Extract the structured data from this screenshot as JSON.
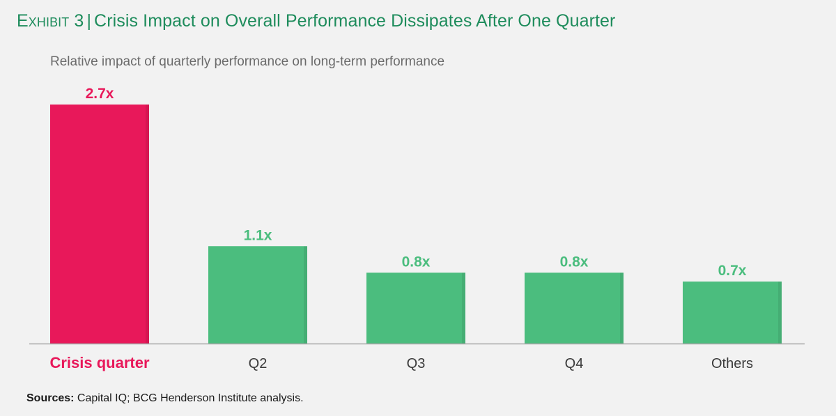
{
  "header": {
    "exhibit_label": "Exhibit 3",
    "title": "Crisis Impact on Overall Performance Dissipates After One Quarter"
  },
  "sources": {
    "label": "Sources:",
    "text": "Capital IQ; BCG Henderson Institute analysis."
  },
  "colors": {
    "highlight": "#e8185a",
    "bar": "#4bbd7e",
    "value_label_highlight": "#e8185a",
    "value_label": "#4bbd7e",
    "title": "#1e8c5c",
    "axis": "#a8a8a8"
  },
  "chart_data": {
    "type": "bar",
    "title": "Crisis Impact on Overall Performance Dissipates After One Quarter",
    "subtitle": "Relative impact of quarterly performance on long-term performance",
    "xlabel": "",
    "ylabel": "",
    "categories": [
      "Crisis quarter",
      "Q2",
      "Q3",
      "Q4",
      "Others"
    ],
    "values": [
      2.7,
      1.1,
      0.8,
      0.8,
      0.7
    ],
    "value_labels": [
      "2.7x",
      "1.1x",
      "0.8x",
      "0.8x",
      "0.7x"
    ],
    "highlight_index": 0,
    "ylim": [
      0,
      2.7
    ],
    "grid": false,
    "legend": "none"
  }
}
